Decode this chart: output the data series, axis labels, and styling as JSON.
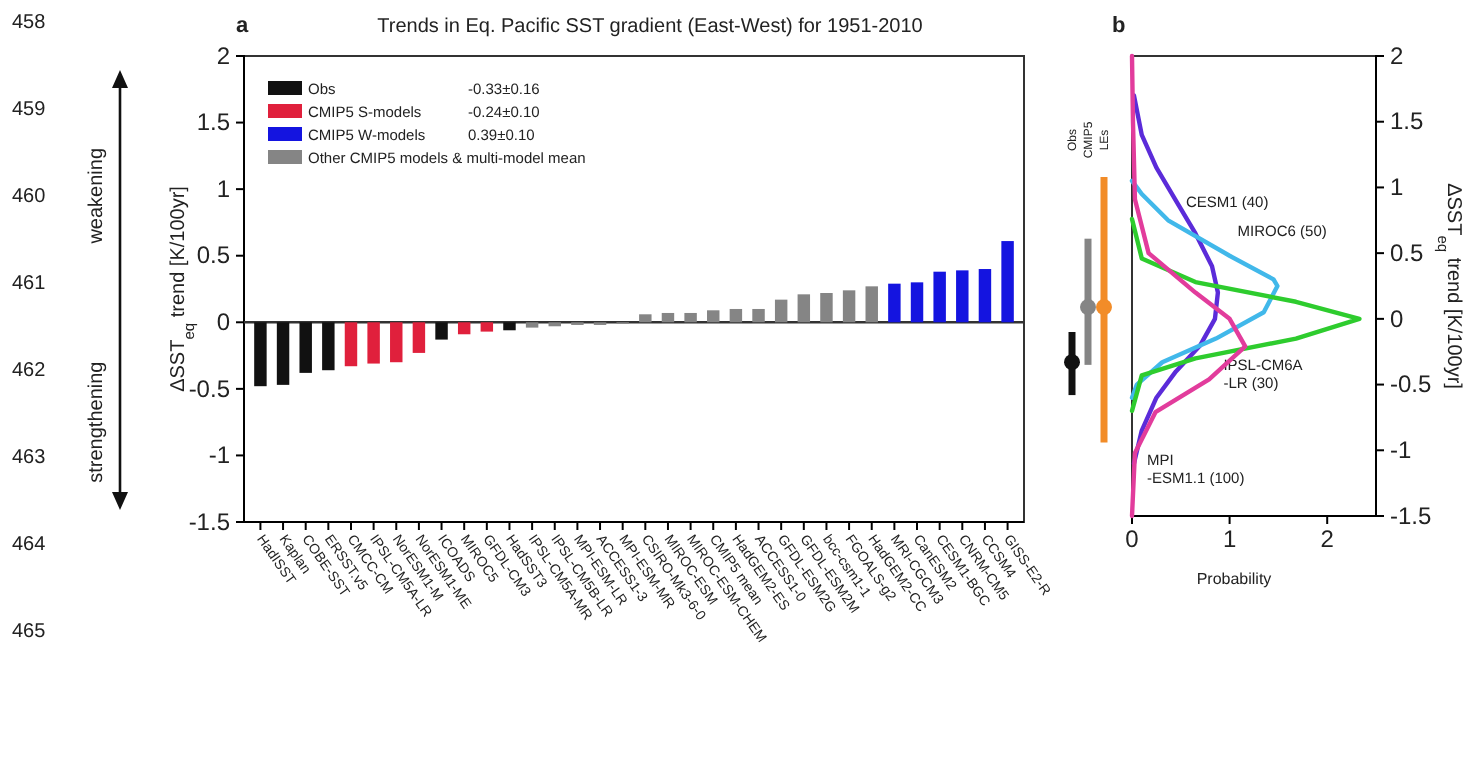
{
  "chart_data": [
    {
      "type": "bar",
      "title": "Trends in Eq. Pacific SST gradient (East-West) for 1951-2010",
      "ylabel": "ΔSST$_{eq}$ trend [K/100yr]",
      "categories": [
        "HadISST",
        "Kaplan",
        "COBE-SST",
        "ERSST.v5",
        "CMCC-CM",
        "IPSL-CM5A-LR",
        "NorESM1-M",
        "NorESM1-ME",
        "ICOADS",
        "MIROC5",
        "GFDL-CM3",
        "HadSST3",
        "IPSL-CM5A-MR",
        "IPSL-CM5B-LR",
        "MPI-ESM-LR",
        "ACCESS1-3",
        "MPI-ESM-MR",
        "CSIRO-Mk3-6-0",
        "MIROC-ESM",
        "MIROC-ESM-CHEM",
        "CMIP5 mean",
        "HadGEM2-ES",
        "ACCESS1-0",
        "GFDL-ESM2G",
        "GFDL-ESM2M",
        "bcc-csm1-1",
        "FGOALS-g2",
        "HadGEM2-CC",
        "MRI-CGCM3",
        "CanESM2",
        "CESM1-BGC",
        "CNRM-CM5",
        "CCSM4",
        "GISS-E2-R"
      ],
      "series": [
        {
          "name": "Obs",
          "color": "#111111",
          "values": [
            -0.48,
            -0.47,
            -0.38,
            -0.36,
            null,
            null,
            null,
            null,
            -0.13,
            null,
            null,
            -0.06,
            null,
            null,
            null,
            null,
            null,
            null,
            null,
            null,
            null,
            null,
            null,
            null,
            null,
            null,
            null,
            null,
            null,
            null,
            null,
            null,
            null,
            null
          ]
        },
        {
          "name": "CMIP5 S-models",
          "color": "#e0203c",
          "values": [
            null,
            null,
            null,
            null,
            -0.33,
            -0.31,
            -0.3,
            -0.23,
            null,
            -0.09,
            -0.07,
            null,
            null,
            null,
            null,
            null,
            null,
            null,
            null,
            null,
            null,
            null,
            null,
            null,
            null,
            null,
            null,
            null,
            null,
            null,
            null,
            null,
            null,
            null
          ]
        },
        {
          "name": "CMIP5 W-models",
          "color": "#1414e0",
          "values": [
            null,
            null,
            null,
            null,
            null,
            null,
            null,
            null,
            null,
            null,
            null,
            null,
            null,
            null,
            null,
            null,
            null,
            null,
            null,
            null,
            null,
            null,
            null,
            null,
            null,
            null,
            null,
            null,
            0.29,
            0.3,
            0.38,
            0.39,
            0.4,
            0.61
          ]
        },
        {
          "name": "Other CMIP5 models & multi-model mean",
          "color": "#858585",
          "values": [
            null,
            null,
            null,
            null,
            null,
            null,
            null,
            null,
            null,
            null,
            null,
            null,
            -0.04,
            -0.03,
            -0.02,
            -0.02,
            -0.01,
            0.06,
            0.07,
            0.07,
            0.09,
            0.1,
            0.1,
            0.17,
            0.21,
            0.22,
            0.24,
            0.27,
            null,
            null,
            null,
            null,
            null,
            null
          ]
        }
      ],
      "ylim": [
        -1.5,
        2
      ],
      "yticks": [
        -1.5,
        -1,
        -0.5,
        0,
        0.5,
        1,
        1.5,
        2
      ],
      "ref_lines": [
        {
          "axis": "y",
          "value": 0
        }
      ],
      "legend": "top left",
      "grid": false,
      "annotations": [
        "a",
        "-0.33±0.16",
        "-0.24±0.10",
        "0.39±0.10",
        "weakening",
        "strengthening",
        "458",
        "459",
        "460",
        "461",
        "462",
        "463",
        "464",
        "465"
      ]
    },
    {
      "type": "scatter",
      "categories": [
        "Obs",
        "CMIP5",
        "LEs"
      ],
      "values": [
        -0.33,
        0.09,
        0.09
      ],
      "colors": [
        "#111111",
        "#858585",
        "#f28c28"
      ],
      "errors": [
        [
          -0.58,
          -0.1
        ],
        [
          -0.35,
          0.61
        ],
        [
          -0.94,
          1.08
        ]
      ],
      "ylim": [
        -1.5,
        2
      ],
      "tick_labels": "x"
    },
    {
      "type": "line",
      "xlabel": "Probability",
      "ylabel": "ΔSST$_{eq}$ trend [K/100yr]",
      "series": [
        {
          "name": "CESM1 (40)",
          "color": "#5b2bd9",
          "x": [
            0.02,
            0.1,
            0.25,
            0.45,
            0.65,
            0.82,
            0.88,
            0.85,
            0.7,
            0.45,
            0.25,
            0.1,
            0.02
          ],
          "values": [
            1.7,
            1.4,
            1.15,
            0.9,
            0.65,
            0.4,
            0.2,
            0,
            -0.2,
            -0.4,
            -0.6,
            -0.85,
            -1.1
          ]
        },
        {
          "name": "MIROC6 (50)",
          "color": "#41b8ea",
          "x": [
            0,
            0.1,
            0.37,
            1.0,
            1.45,
            1.49,
            1.35,
            0.86,
            0.31,
            0.05,
            0
          ],
          "values": [
            1.05,
            0.95,
            0.75,
            0.48,
            0.3,
            0.25,
            0.05,
            -0.15,
            -0.33,
            -0.5,
            -0.6
          ]
        },
        {
          "name": "IPSL-CM6A-LR (30)",
          "color": "#2ecc2e",
          "x": [
            0,
            0.1,
            0.65,
            1.68,
            2.33,
            1.68,
            0.65,
            0.1,
            0
          ],
          "values": [
            0.76,
            0.46,
            0.28,
            0.13,
            0,
            -0.15,
            -0.3,
            -0.43,
            -0.7
          ]
        },
        {
          "name": "MPI-ESM1.1 (100)",
          "color": "#e23c9c",
          "x": [
            0,
            0.01,
            0.03,
            0.17,
            0.65,
            1.0,
            1.16,
            0.79,
            0.24,
            0.03,
            0
          ],
          "values": [
            2,
            1.5,
            0.91,
            0.5,
            0.2,
            0,
            -0.21,
            -0.46,
            -0.71,
            -1.02,
            -1.5
          ]
        }
      ],
      "xlim": [
        0,
        2.5
      ],
      "xticks": [
        0,
        1,
        2
      ],
      "ylim": [
        -1.5,
        2
      ],
      "yticks": [
        -1.5,
        -1,
        -0.5,
        0,
        0.5,
        1,
        1.5,
        2
      ],
      "legend": false,
      "grid": false,
      "annotations": [
        "b"
      ]
    }
  ]
}
